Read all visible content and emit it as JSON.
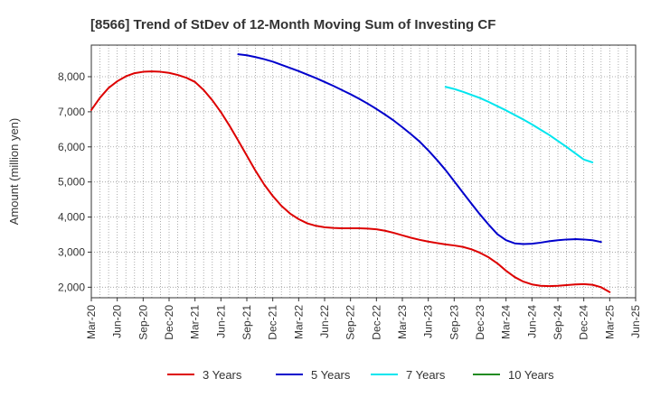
{
  "chart_data": {
    "type": "line",
    "title": "[8566]  Trend of StDev of 12-Month Moving Sum of Investing CF",
    "xlabel": "",
    "ylabel": "Amount (million yen)",
    "ylim": [
      1700,
      8900
    ],
    "yticks": [
      2000,
      3000,
      4000,
      5000,
      6000,
      7000,
      8000
    ],
    "ytick_labels": [
      "2,000",
      "3,000",
      "4,000",
      "5,000",
      "6,000",
      "7,000",
      "8,000"
    ],
    "x_tick_labels": [
      "Mar-20",
      "Jun-20",
      "Sep-20",
      "Dec-20",
      "Mar-21",
      "Jun-21",
      "Sep-21",
      "Dec-21",
      "Mar-22",
      "Jun-22",
      "Sep-22",
      "Dec-22",
      "Mar-23",
      "Jun-23",
      "Sep-23",
      "Dec-23",
      "Mar-24",
      "Jun-24",
      "Sep-24",
      "Dec-24",
      "Mar-25",
      "Jun-25"
    ],
    "grid": true,
    "legend_position": "bottom",
    "series": [
      {
        "name": "3 Years",
        "color": "#dd0000",
        "points": [
          [
            "Mar-20",
            7050
          ],
          [
            "Apr-20",
            7400
          ],
          [
            "May-20",
            7680
          ],
          [
            "Jun-20",
            7870
          ],
          [
            "Jul-20",
            8010
          ],
          [
            "Aug-20",
            8100
          ],
          [
            "Sep-20",
            8140
          ],
          [
            "Oct-20",
            8150
          ],
          [
            "Nov-20",
            8140
          ],
          [
            "Dec-20",
            8110
          ],
          [
            "Jan-21",
            8050
          ],
          [
            "Feb-21",
            7970
          ],
          [
            "Mar-21",
            7850
          ],
          [
            "Apr-21",
            7620
          ],
          [
            "May-21",
            7330
          ],
          [
            "Jun-21",
            6990
          ],
          [
            "Jul-21",
            6600
          ],
          [
            "Aug-21",
            6180
          ],
          [
            "Sep-21",
            5750
          ],
          [
            "Oct-21",
            5320
          ],
          [
            "Nov-21",
            4930
          ],
          [
            "Dec-21",
            4600
          ],
          [
            "Jan-22",
            4320
          ],
          [
            "Feb-22",
            4100
          ],
          [
            "Mar-22",
            3940
          ],
          [
            "Apr-22",
            3820
          ],
          [
            "May-22",
            3750
          ],
          [
            "Jun-22",
            3710
          ],
          [
            "Jul-22",
            3690
          ],
          [
            "Aug-22",
            3680
          ],
          [
            "Sep-22",
            3680
          ],
          [
            "Oct-22",
            3680
          ],
          [
            "Nov-22",
            3670
          ],
          [
            "Dec-22",
            3650
          ],
          [
            "Jan-23",
            3610
          ],
          [
            "Feb-23",
            3550
          ],
          [
            "Mar-23",
            3480
          ],
          [
            "Apr-23",
            3410
          ],
          [
            "May-23",
            3350
          ],
          [
            "Jun-23",
            3300
          ],
          [
            "Jul-23",
            3260
          ],
          [
            "Aug-23",
            3220
          ],
          [
            "Sep-23",
            3190
          ],
          [
            "Oct-23",
            3150
          ],
          [
            "Nov-23",
            3080
          ],
          [
            "Dec-23",
            2980
          ],
          [
            "Jan-24",
            2850
          ],
          [
            "Feb-24",
            2680
          ],
          [
            "Mar-24",
            2470
          ],
          [
            "Apr-24",
            2290
          ],
          [
            "May-24",
            2160
          ],
          [
            "Jun-24",
            2080
          ],
          [
            "Jul-24",
            2040
          ],
          [
            "Aug-24",
            2030
          ],
          [
            "Sep-24",
            2040
          ],
          [
            "Oct-24",
            2060
          ],
          [
            "Nov-24",
            2080
          ],
          [
            "Dec-24",
            2090
          ],
          [
            "Jan-25",
            2070
          ],
          [
            "Feb-25",
            2000
          ],
          [
            "Mar-25",
            1860
          ]
        ]
      },
      {
        "name": "5 Years",
        "color": "#0000cc",
        "points": [
          [
            "Aug-21",
            8640
          ],
          [
            "Sep-21",
            8610
          ],
          [
            "Oct-21",
            8560
          ],
          [
            "Nov-21",
            8500
          ],
          [
            "Dec-21",
            8430
          ],
          [
            "Jan-22",
            8340
          ],
          [
            "Feb-22",
            8250
          ],
          [
            "Mar-22",
            8160
          ],
          [
            "Apr-22",
            8060
          ],
          [
            "May-22",
            7960
          ],
          [
            "Jun-22",
            7850
          ],
          [
            "Jul-22",
            7740
          ],
          [
            "Aug-22",
            7620
          ],
          [
            "Sep-22",
            7500
          ],
          [
            "Oct-22",
            7370
          ],
          [
            "Nov-22",
            7230
          ],
          [
            "Dec-22",
            7080
          ],
          [
            "Jan-23",
            6920
          ],
          [
            "Feb-23",
            6750
          ],
          [
            "Mar-23",
            6560
          ],
          [
            "Apr-23",
            6360
          ],
          [
            "May-23",
            6150
          ],
          [
            "Jun-23",
            5900
          ],
          [
            "Jul-23",
            5630
          ],
          [
            "Aug-23",
            5340
          ],
          [
            "Sep-23",
            5020
          ],
          [
            "Oct-23",
            4700
          ],
          [
            "Nov-23",
            4380
          ],
          [
            "Dec-23",
            4070
          ],
          [
            "Jan-24",
            3780
          ],
          [
            "Feb-24",
            3510
          ],
          [
            "Mar-24",
            3340
          ],
          [
            "Apr-24",
            3250
          ],
          [
            "May-24",
            3230
          ],
          [
            "Jun-24",
            3240
          ],
          [
            "Jul-24",
            3270
          ],
          [
            "Aug-24",
            3310
          ],
          [
            "Sep-24",
            3340
          ],
          [
            "Oct-24",
            3360
          ],
          [
            "Nov-24",
            3370
          ],
          [
            "Dec-24",
            3360
          ],
          [
            "Jan-25",
            3340
          ],
          [
            "Feb-25",
            3290
          ]
        ]
      },
      {
        "name": "7 Years",
        "color": "#00e5ee",
        "points": [
          [
            "Aug-23",
            7710
          ],
          [
            "Sep-23",
            7650
          ],
          [
            "Oct-23",
            7570
          ],
          [
            "Nov-23",
            7480
          ],
          [
            "Dec-23",
            7390
          ],
          [
            "Jan-24",
            7280
          ],
          [
            "Feb-24",
            7160
          ],
          [
            "Mar-24",
            7040
          ],
          [
            "Apr-24",
            6910
          ],
          [
            "May-24",
            6780
          ],
          [
            "Jun-24",
            6640
          ],
          [
            "Jul-24",
            6490
          ],
          [
            "Aug-24",
            6340
          ],
          [
            "Sep-24",
            6170
          ],
          [
            "Oct-24",
            6000
          ],
          [
            "Nov-24",
            5820
          ],
          [
            "Dec-24",
            5640
          ],
          [
            "Jan-25",
            5560
          ]
        ]
      },
      {
        "name": "10 Years",
        "color": "#228b22",
        "points": []
      }
    ]
  }
}
